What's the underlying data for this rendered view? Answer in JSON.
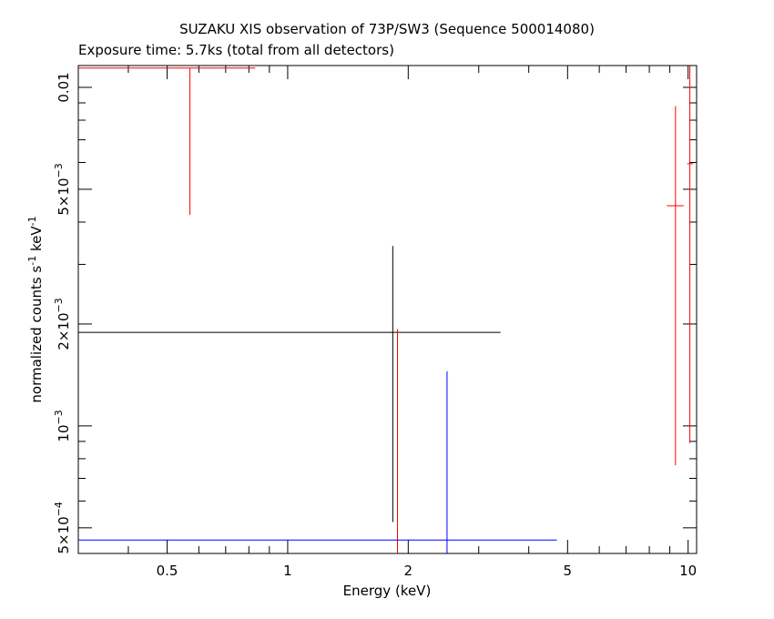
{
  "chart_data": {
    "type": "scatter",
    "title": "SUZAKU XIS observation of 73P/SW3 (Sequence 500014080)",
    "subtitle": "Exposure time: 5.7ks (total from all detectors)",
    "xlabel": "Energy (keV)",
    "ylabel": {
      "prefix": "normalized counts s",
      "exp1": "-1",
      "mid": " keV",
      "exp2": "-1"
    },
    "xscale": "log",
    "yscale": "log",
    "xlim": [
      0.3,
      10.5
    ],
    "ylim": [
      0.00042,
      0.0116
    ],
    "x_ticks": [
      {
        "value": 0.5,
        "label": "0.5"
      },
      {
        "value": 1,
        "label": "1"
      },
      {
        "value": 2,
        "label": "2"
      },
      {
        "value": 5,
        "label": "5"
      },
      {
        "value": 10,
        "label": "10"
      }
    ],
    "y_ticks": [
      {
        "value": 0.0005,
        "mant": "5×10",
        "exp": "−4"
      },
      {
        "value": 0.001,
        "mant": "10",
        "exp": "−3"
      },
      {
        "value": 0.002,
        "mant": "2×10",
        "exp": "−3"
      },
      {
        "value": 0.005,
        "mant": "5×10",
        "exp": "−3"
      },
      {
        "value": 0.01,
        "mant": "0.01",
        "exp": ""
      }
    ],
    "grid": false,
    "series": [
      {
        "color": "#000000",
        "points": [
          {
            "x": 1.83,
            "xlo": 0.3,
            "xhi": 3.4,
            "y": 0.00189,
            "ylo": 0.00052,
            "yhi": 0.0034
          }
        ]
      },
      {
        "color": "#ff0000",
        "points": [
          {
            "x": 0.57,
            "xlo": 0.3,
            "xhi": 0.83,
            "y": 0.0114,
            "ylo": 0.0042,
            "yhi": 0.0114
          },
          {
            "x": 1.88,
            "xlo": 1.88,
            "xhi": 1.88,
            "y": 0.00055,
            "ylo": 0.00042,
            "yhi": 0.00193
          },
          {
            "x": 9.3,
            "xlo": 8.85,
            "xhi": 9.75,
            "y": 0.00447,
            "ylo": 0.000765,
            "yhi": 0.0088
          },
          {
            "x": 10.1,
            "xlo": 9.95,
            "xhi": 10.3,
            "y": 0.00595,
            "ylo": 0.00089,
            "yhi": 0.0116
          }
        ]
      },
      {
        "color": "#0000ff",
        "points": [
          {
            "x": 2.5,
            "xlo": 0.3,
            "xhi": 4.7,
            "y": 0.00046,
            "ylo": 0.00042,
            "yhi": 0.00145
          }
        ]
      }
    ]
  }
}
